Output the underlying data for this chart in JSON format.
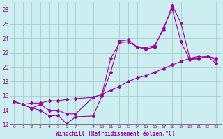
{
  "xlabel": "Windchill (Refroidissement éolien,°C)",
  "ylabel": "",
  "xlim_min": -0.5,
  "xlim_max": 23.5,
  "ylim_min": 12,
  "ylim_max": 29,
  "xticks": [
    0,
    1,
    2,
    3,
    4,
    5,
    6,
    7,
    9,
    10,
    11,
    12,
    13,
    14,
    15,
    16,
    17,
    18,
    19,
    20,
    21,
    22,
    23
  ],
  "yticks": [
    12,
    14,
    16,
    18,
    20,
    22,
    24,
    26,
    28
  ],
  "background_color": "#cceef0",
  "grid_color": "#aacccc",
  "line_color": "#990099",
  "line1_x": [
    0,
    1,
    2,
    3,
    4,
    5,
    6,
    7,
    9,
    10,
    11,
    12,
    13,
    14,
    15,
    16,
    17,
    18,
    19,
    20,
    21,
    22,
    23
  ],
  "line1_y": [
    15.2,
    14.8,
    14.3,
    14.0,
    13.2,
    13.3,
    12.1,
    13.1,
    13.2,
    16.0,
    19.3,
    23.6,
    23.8,
    22.8,
    22.7,
    23.0,
    25.2,
    28.6,
    26.1,
    21.2,
    21.1,
    21.5,
    21.0
  ],
  "line2_x": [
    0,
    1,
    2,
    3,
    4,
    5,
    6,
    7,
    9,
    10,
    11,
    12,
    13,
    14,
    15,
    16,
    17,
    18,
    19,
    20,
    21,
    22,
    23
  ],
  "line2_y": [
    15.2,
    14.8,
    15.0,
    15.0,
    15.3,
    15.3,
    15.5,
    15.6,
    15.8,
    16.2,
    16.8,
    17.3,
    18.0,
    18.5,
    18.8,
    19.3,
    19.8,
    20.3,
    20.8,
    21.2,
    21.5,
    21.5,
    20.5
  ],
  "line3_x": [
    0,
    1,
    2,
    3,
    4,
    5,
    6,
    7,
    9,
    10,
    11,
    12,
    13,
    14,
    15,
    16,
    17,
    18,
    19,
    20,
    21,
    22,
    23
  ],
  "line3_y": [
    15.2,
    14.8,
    14.3,
    14.8,
    14.0,
    14.0,
    13.5,
    13.5,
    15.8,
    16.2,
    21.2,
    23.4,
    23.5,
    22.8,
    22.5,
    22.8,
    25.5,
    28.1,
    23.5,
    21.0,
    21.2,
    21.5,
    21.2
  ]
}
